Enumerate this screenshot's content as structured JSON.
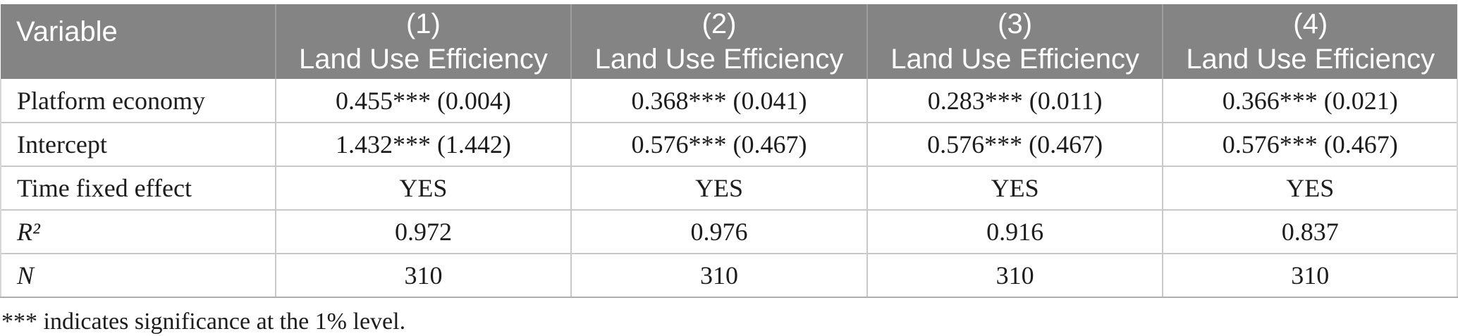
{
  "table": {
    "header": {
      "variable_label": "Variable",
      "columns": [
        {
          "number": "(1)",
          "title": "Land Use Efficiency"
        },
        {
          "number": "(2)",
          "title": "Land Use Efficiency"
        },
        {
          "number": "(3)",
          "title": "Land Use Efficiency"
        },
        {
          "number": "(4)",
          "title": "Land Use Efficiency"
        }
      ]
    },
    "rows": [
      {
        "label": "Platform economy",
        "values": [
          "0.455*** (0.004)",
          "0.368*** (0.041)",
          "0.283*** (0.011)",
          "0.366*** (0.021)"
        ]
      },
      {
        "label": "Intercept",
        "values": [
          "1.432*** (1.442)",
          "0.576*** (0.467)",
          "0.576*** (0.467)",
          "0.576*** (0.467)"
        ]
      },
      {
        "label": "Time fixed effect",
        "values": [
          "YES",
          "YES",
          "YES",
          "YES"
        ]
      },
      {
        "label": "R²",
        "values": [
          "0.972",
          "0.976",
          "0.916",
          "0.837"
        ]
      },
      {
        "label": "N",
        "values": [
          "310",
          "310",
          "310",
          "310"
        ]
      }
    ],
    "footnote": "*** indicates significance at the 1% level."
  },
  "colors": {
    "header_bg": "#848484",
    "header_separator": "#9d9d9d",
    "header_text": "#ffffff",
    "body_text": "#1c1c1c",
    "row_border": "#c9c9c9",
    "outer_border": "#d6d6d6",
    "bottom_border": "#aeaeae",
    "background": "#ffffff"
  }
}
